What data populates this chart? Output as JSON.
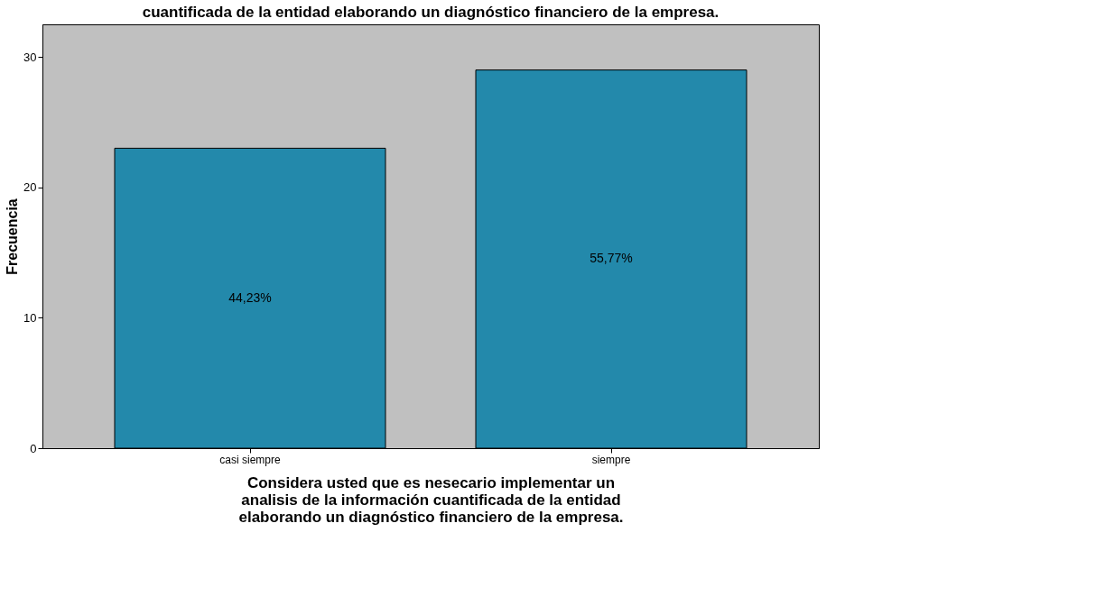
{
  "chart_data": {
    "type": "bar",
    "title": "cuantificada de la entidad elaborando un diagnóstico financiero de la empresa.",
    "xlabel": "Considera usted que es nesecario implementar un\nanalisis de la información cuantificada de la entidad\nelaborando un diagnóstico financiero de la empresa.",
    "ylabel": "Frecuencia",
    "categories": [
      "casi siempre",
      "siempre"
    ],
    "values": [
      23,
      29
    ],
    "annotations": [
      "44,23%",
      "55,77%"
    ],
    "color": "#2389ab",
    "ylim": [
      0,
      32.5
    ],
    "yticks": [
      0,
      10,
      20,
      30
    ],
    "grid": false
  }
}
